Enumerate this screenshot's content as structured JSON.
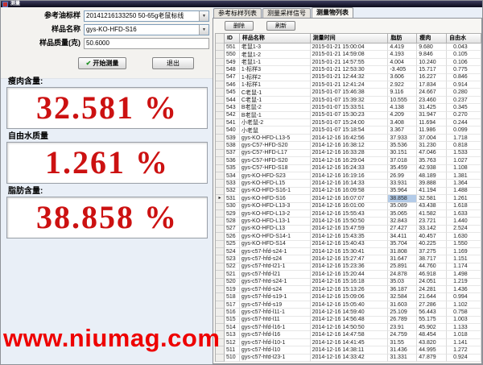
{
  "window": {
    "title": "测量"
  },
  "form": {
    "fields": [
      {
        "label": "参考油标样",
        "value": "20141216133250 50-65g老鼠标线"
      },
      {
        "label": "样品名称",
        "value": "gys-KO-HFD-S16"
      },
      {
        "label": "样品质量(克)",
        "value": "50.6000"
      }
    ],
    "start_check": "✔",
    "start_label": "开始测量",
    "exit_label": "退出"
  },
  "readouts": [
    {
      "label": "瘦肉含量:",
      "value": "32.581 %"
    },
    {
      "label": "自由水质量",
      "value": "1.261 %"
    },
    {
      "label": "脂肪含量:",
      "value": "38.858 %"
    }
  ],
  "tabs": [
    {
      "label": "参考标样列表",
      "active": false
    },
    {
      "label": "测量采样信号",
      "active": false
    },
    {
      "label": "测量物列表",
      "active": true
    }
  ],
  "toolbar": {
    "delete_label": "删除",
    "refresh_label": "刷新"
  },
  "table": {
    "columns": [
      "ID",
      "样品名称",
      "测量时间",
      "脂肪",
      "瘦肉",
      "自由水"
    ],
    "selected_row_id": "531",
    "selected_column": "脂肪",
    "rows": [
      [
        "551",
        "老鼠1-3",
        "2015-01-21 15:00:04",
        "4.419",
        "9.680",
        "0.043"
      ],
      [
        "550",
        "老鼠1-2",
        "2015-01-21 14:59:08",
        "4.193",
        "9.846",
        "0.105"
      ],
      [
        "549",
        "老鼠1-1",
        "2015-01-21 14:57:55",
        "4.004",
        "10.240",
        "0.106"
      ],
      [
        "548",
        "1-标样3",
        "2015-01-21 12:53:30",
        "-3.405",
        "15.717",
        "0.775"
      ],
      [
        "547",
        "1-标样2",
        "2015-01-21 12:44:32",
        "3.606",
        "16.227",
        "0.846"
      ],
      [
        "546",
        "1-标样1",
        "2015-01-21 12:41:24",
        "2.922",
        "17.834",
        "0.914"
      ],
      [
        "545",
        "C老鼠-1",
        "2015-01-07 15:46:38",
        "9.116",
        "24.667",
        "0.280"
      ],
      [
        "544",
        "C老鼠-1",
        "2015-01-07 15:39:32",
        "10.555",
        "23.460",
        "0.237"
      ],
      [
        "543",
        "B老鼠-2",
        "2015-01-07 15:33:51",
        "4.138",
        "31.425",
        "0.345"
      ],
      [
        "542",
        "B老鼠-1",
        "2015-01-07 15:30:23",
        "4.209",
        "31.947",
        "0.270"
      ],
      [
        "541",
        "小老鼠-2",
        "2015-01-07 15:24:00",
        "3.408",
        "11.694",
        "0.244"
      ],
      [
        "540",
        "小老鼠",
        "2015-01-07 15:18:54",
        "3.367",
        "11.986",
        "0.099"
      ],
      [
        "539",
        "gys-KO-HFD-L13-5",
        "2014-12-16 16:42:56",
        "37.933",
        "37.004",
        "1.718"
      ],
      [
        "538",
        "gys-C57-HFD-S20",
        "2014-12-16 16:38:12",
        "35.536",
        "31.230",
        "0.818"
      ],
      [
        "537",
        "gys-C57-HFD-L17",
        "2014-12-16 16:33:28",
        "30.151",
        "47.046",
        "1.533"
      ],
      [
        "536",
        "gys-C57-HFD-S20",
        "2014-12-16 16:29:04",
        "37.018",
        "35.763",
        "1.027"
      ],
      [
        "535",
        "gys-C57-HFD-S18",
        "2014-12-16 16:24:33",
        "35.459",
        "42.938",
        "1.108"
      ],
      [
        "534",
        "gys-KO-HFD-S23",
        "2014-12-16 16:19:16",
        "26.99",
        "48.189",
        "1.381"
      ],
      [
        "533",
        "gys-KO-HFD-L15",
        "2014-12-16 16:14:33",
        "33.931",
        "39.888",
        "1.364"
      ],
      [
        "532",
        "gys-KO-HFD-S16-1",
        "2014-12-16 16:09:58",
        "35.964",
        "41.194",
        "1.488"
      ],
      [
        "531",
        "gys-KO-HFD-S16",
        "2014-12-16 16:07:07",
        "38.858",
        "32.581",
        "1.261"
      ],
      [
        "530",
        "gys-KO-HFD-L13-3",
        "2014-12-16 16:01:00",
        "35.089",
        "43.438",
        "1.618"
      ],
      [
        "529",
        "gys-KO-HFD-L13-2",
        "2014-12-16 15:55:43",
        "35.065",
        "41.582",
        "1.633"
      ],
      [
        "528",
        "gys-KO-HFD-L13-1",
        "2014-12-16 15:50:50",
        "32.843",
        "23.721",
        "1.440"
      ],
      [
        "527",
        "gys-KO-HFD-L13",
        "2014-12-16 15:47:59",
        "27.427",
        "33.142",
        "2.524"
      ],
      [
        "526",
        "gys-KO-HFD-S14-1",
        "2014-12-16 15:43:35",
        "34.411",
        "40.457",
        "1.630"
      ],
      [
        "525",
        "gys-KO-HFD-S14",
        "2014-12-16 15:40:43",
        "35.704",
        "40.225",
        "1.550"
      ],
      [
        "524",
        "gys-c57-hfd-s24-1",
        "2014-12-16 15:30:41",
        "31.808",
        "37.275",
        "1.169"
      ],
      [
        "523",
        "gys-c57-hfd-s24",
        "2014-12-16 15:27:47",
        "31.647",
        "38.717",
        "1.151"
      ],
      [
        "522",
        "gys-c57-hfd-l21-1",
        "2014-12-16 15:23:36",
        "25.891",
        "44.760",
        "1.174"
      ],
      [
        "521",
        "gys-c57-hfd-l21",
        "2014-12-16 15:20:44",
        "24.878",
        "46.918",
        "1.498"
      ],
      [
        "520",
        "gys-c57-hfd-s24-1",
        "2014-12-16 15:16:18",
        "35.03",
        "24.051",
        "1.219"
      ],
      [
        "519",
        "gys-c57-hfd-s24",
        "2014-12-16 15:13:26",
        "36.187",
        "24.281",
        "1.436"
      ],
      [
        "518",
        "gys-c57-hfd-s19-1",
        "2014-12-16 15:09:06",
        "32.584",
        "21.644",
        "0.994"
      ],
      [
        "517",
        "gys-c57-hfd-s19",
        "2014-12-16 15:05:40",
        "31.603",
        "27.286",
        "1.102"
      ],
      [
        "516",
        "gys-c57-hfd-l11-1",
        "2014-12-16 14:59:40",
        "25.109",
        "56.443",
        "0.758"
      ],
      [
        "515",
        "gys-c57-hfd-l11",
        "2014-12-16 14:56:48",
        "26.789",
        "55.175",
        "1.003"
      ],
      [
        "514",
        "gys-c57-hfd-l16-1",
        "2014-12-16 14:50:50",
        "23.91",
        "45.902",
        "1.133"
      ],
      [
        "513",
        "gys-c57-hfd-l16",
        "2014-12-16 14:47:58",
        "24.759",
        "48.454",
        "1.018"
      ],
      [
        "512",
        "gys-c57-hfd-l10-1",
        "2014-12-16 14:41:45",
        "31.55",
        "43.820",
        "1.141"
      ],
      [
        "511",
        "gys-c57-hfd-l10",
        "2014-12-16 14:38:11",
        "31.436",
        "44.995",
        "1.272"
      ],
      [
        "510",
        "gys-c57-hfd-l23-1",
        "2014-12-16 14:33:42",
        "31.331",
        "47.879",
        "0.924"
      ]
    ]
  },
  "watermark": "www.niumag.com",
  "colors": {
    "readout_red": "#cc1111",
    "selection_blue": "#b3cbe8",
    "watermark_red": "#ee0000"
  }
}
